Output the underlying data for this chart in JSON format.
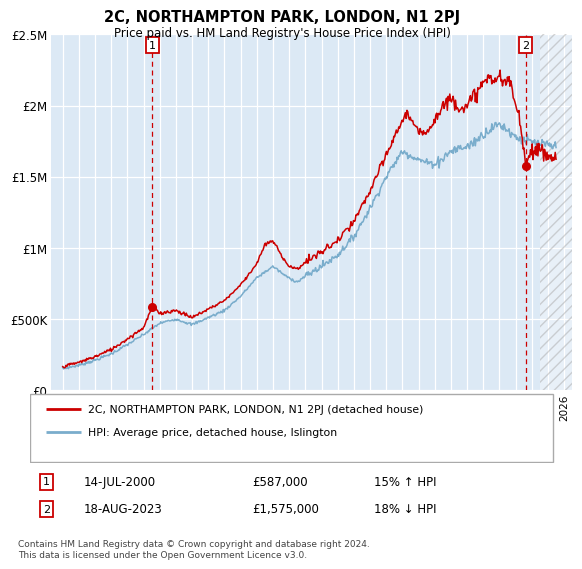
{
  "title": "2C, NORTHAMPTON PARK, LONDON, N1 2PJ",
  "subtitle": "Price paid vs. HM Land Registry's House Price Index (HPI)",
  "ylim": [
    0,
    2500000
  ],
  "yticks": [
    0,
    500000,
    1000000,
    1500000,
    2000000,
    2500000
  ],
  "ytick_labels": [
    "£0",
    "£500K",
    "£1M",
    "£1.5M",
    "£2M",
    "£2.5M"
  ],
  "bg_color": "#dce9f5",
  "red_line_color": "#cc0000",
  "blue_line_color": "#7aadcc",
  "point1_x": 2000.54,
  "point1_y": 587000,
  "point2_x": 2023.63,
  "point2_y": 1575000,
  "legend_line1": "2C, NORTHAMPTON PARK, LONDON, N1 2PJ (detached house)",
  "legend_line2": "HPI: Average price, detached house, Islington",
  "point1_date": "14-JUL-2000",
  "point1_price": "£587,000",
  "point1_hpi": "15% ↑ HPI",
  "point2_date": "18-AUG-2023",
  "point2_price": "£1,575,000",
  "point2_hpi": "18% ↓ HPI",
  "footer": "Contains HM Land Registry data © Crown copyright and database right 2024.\nThis data is licensed under the Open Government Licence v3.0.",
  "hatch_start": 2024.5,
  "xlim_left": 1994.3,
  "xlim_right": 2026.5
}
